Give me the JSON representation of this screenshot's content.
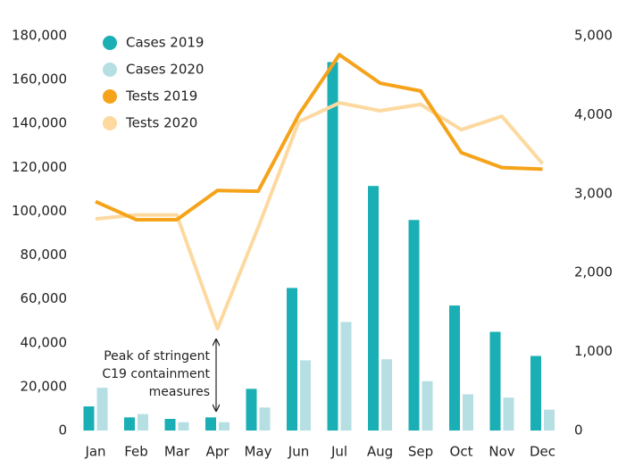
{
  "chart_data": {
    "type": "bar-line",
    "categories": [
      "Jan",
      "Feb",
      "Mar",
      "Apr",
      "May",
      "Jun",
      "Jul",
      "Aug",
      "Sep",
      "Oct",
      "Nov",
      "Dec"
    ],
    "series": [
      {
        "name": "Cases 2019",
        "type": "bar",
        "color": "#1aafb5",
        "axis": "y",
        "values": [
          11000,
          6000,
          5300,
          6000,
          19000,
          65000,
          168000,
          111500,
          96000,
          57000,
          45000,
          34000
        ]
      },
      {
        "name": "Cases 2020",
        "type": "bar",
        "color": "#b5dfe2",
        "axis": "y",
        "values": [
          19500,
          7500,
          3800,
          3800,
          10500,
          32000,
          49500,
          32500,
          22500,
          16500,
          15000,
          9500
        ]
      },
      {
        "name": "Tests 2019",
        "type": "line",
        "color": "#f5a31a",
        "axis": "y2",
        "values": [
          2900,
          2670,
          2670,
          3040,
          3030,
          4000,
          4760,
          4400,
          4300,
          3520,
          3330,
          3310
        ]
      },
      {
        "name": "Tests 2020",
        "type": "line",
        "color": "#fdd9a0",
        "axis": "y2",
        "values": [
          2680,
          2730,
          2730,
          1290,
          2570,
          3910,
          4150,
          4050,
          4130,
          3810,
          3980,
          3380
        ]
      }
    ],
    "ylim": [
      0,
      180000
    ],
    "yticks": [
      0,
      {
        "value": 20000,
        "label": "20,000"
      },
      {
        "value": 40000,
        "label": "40,000"
      },
      {
        "value": 60000,
        "label": "60,000"
      },
      {
        "value": 80000,
        "label": "80,000"
      },
      {
        "value": 100000,
        "label": "100,000"
      },
      {
        "value": 120000,
        "label": "120,000"
      },
      {
        "value": 140000,
        "label": "140,000"
      },
      {
        "value": 160000,
        "label": "160,000"
      },
      {
        "value": 180000,
        "label": "180,000"
      }
    ],
    "y2lim": [
      0,
      5000
    ],
    "y2ticks": [
      0,
      {
        "value": 1000,
        "label": "1,000"
      },
      {
        "value": 2000,
        "label": "2,000"
      },
      {
        "value": 3000,
        "label": "3,000"
      },
      {
        "value": 4000,
        "label": "4,000"
      },
      {
        "value": 5000,
        "label": "5,000"
      }
    ],
    "annotation": [
      "Peak of stringent",
      "C19 containment",
      "measures"
    ]
  }
}
